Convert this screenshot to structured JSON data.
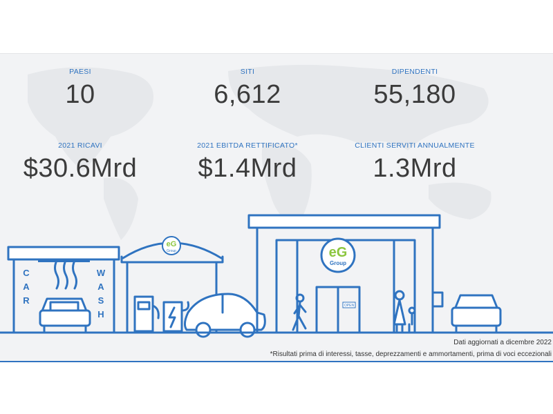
{
  "stats": [
    {
      "label": "PAESI",
      "value": "10"
    },
    {
      "label": "SITI",
      "value": "6,612"
    },
    {
      "label": "DIPENDENTI",
      "value": "55,180"
    },
    {
      "label": "2021 RICAVI",
      "value": "$30.6Mrd"
    },
    {
      "label": "2021 EBITDA RETTIFICATO*",
      "value": "$1.4Mrd"
    },
    {
      "label": "CLIENTI SERVITI ANNUALMENTE",
      "value": "1.3Mrd"
    }
  ],
  "carwash": {
    "word1": "CAR",
    "word2": "WASH"
  },
  "brand": {
    "logo_text": "eG",
    "logo_sub": "Group"
  },
  "shop": {
    "open_sign": "OPEN"
  },
  "notes": {
    "updated": "Dati aggiornati a dicembre 2022",
    "footnote": "*Risultati prima di interessi, tasse, deprezzamenti e ammortamenti, prima di voci eccezionali"
  },
  "colors": {
    "primary": "#2f73c0",
    "brand_green": "#8cc63f",
    "bg": "#f2f3f5"
  }
}
